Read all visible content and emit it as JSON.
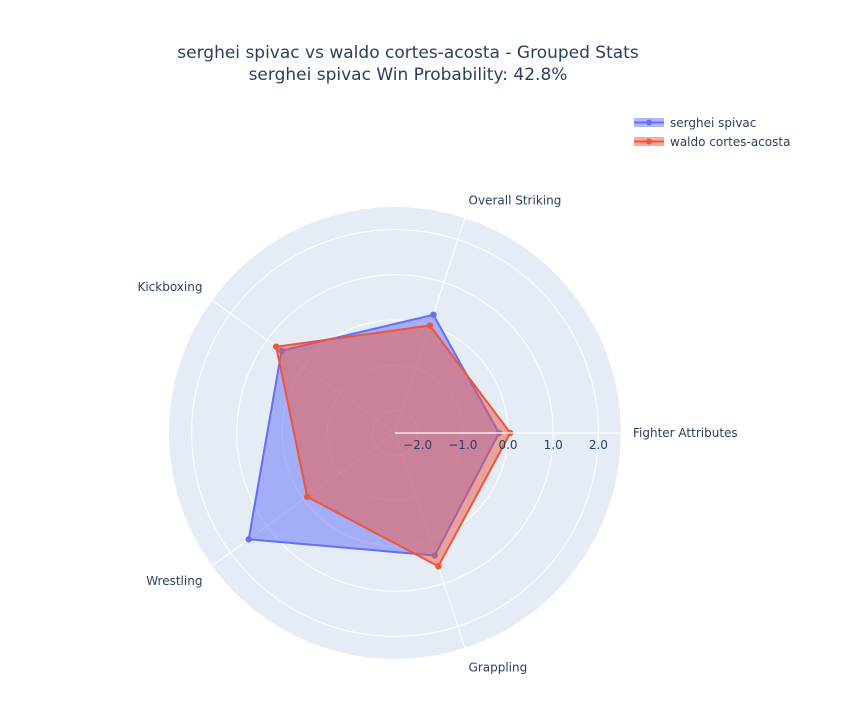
{
  "chart_data": {
    "type": "radar",
    "title": "serghei spivac vs waldo cortes-acosta - Grouped Stats",
    "subtitle": "serghei spivac Win Probability: 42.8%",
    "axes": [
      "Fighter Attributes",
      "Overall Striking",
      "Kickboxing",
      "Wrestling",
      "Grappling"
    ],
    "radial_range": [
      -2.5,
      2.5
    ],
    "radial_ticks": [
      -2.0,
      -1.0,
      0.0,
      1.0,
      2.0
    ],
    "radial_tick_labels": [
      "−2.0",
      "−1.0",
      "0.0",
      "1.0",
      "2.0"
    ],
    "legend_position": "top-right",
    "series": [
      {
        "name": "serghei spivac",
        "color": "#636efa",
        "values": [
          -0.2,
          0.25,
          0.6,
          1.5,
          0.35
        ]
      },
      {
        "name": "waldo cortes-acosta",
        "color": "#ef553b",
        "values": [
          0.05,
          0.0,
          0.75,
          -0.1,
          0.6
        ]
      }
    ]
  }
}
